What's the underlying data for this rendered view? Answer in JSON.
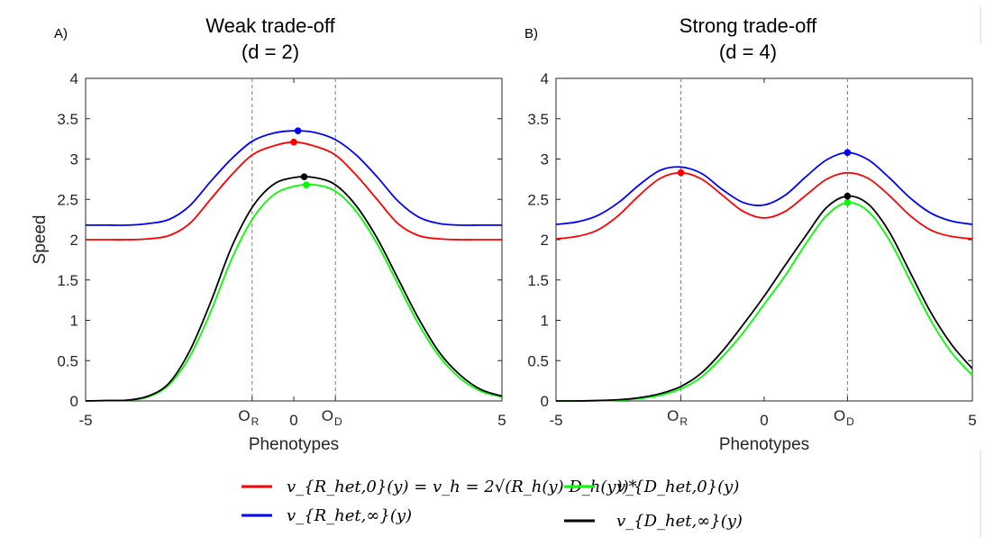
{
  "legend": [
    {
      "label": "v_{R_het,0}(y) = v_h = 2√(R_h(y) D_h(y))*",
      "color": "#ff0000"
    },
    {
      "label": "v_{R_het,∞}(y)",
      "color": "#0000ff"
    },
    {
      "label": "v_{D_het,0}(y)",
      "color": "#00ff00"
    },
    {
      "label": "v_{D_het,∞}(y)",
      "color": "#000000"
    }
  ],
  "chart_data": [
    {
      "type": "line",
      "panel_label": "A)",
      "title": "Weak trade-off",
      "subtitle": "(d = 2)",
      "xlabel": "Phenotypes",
      "ylabel": "Speed",
      "xlim": [
        -5,
        5
      ],
      "ylim": [
        0,
        4
      ],
      "xticks": [
        {
          "value": -5,
          "label": "-5"
        },
        {
          "value": 0,
          "label": "0"
        },
        {
          "value": 5,
          "label": "5"
        }
      ],
      "yticks": [
        0,
        0.5,
        1,
        1.5,
        2,
        2.5,
        3,
        3.5,
        4
      ],
      "optima": [
        {
          "value": -1,
          "label": "O",
          "sub": "R"
        },
        {
          "value": 1,
          "label": "O",
          "sub": "D"
        }
      ],
      "x": [
        -5,
        -4.5,
        -4,
        -3.5,
        -3,
        -2.5,
        -2,
        -1.5,
        -1,
        -0.5,
        0,
        0.5,
        1,
        1.5,
        2,
        2.5,
        3,
        3.5,
        4,
        4.5,
        5
      ],
      "series": [
        {
          "name": "v_{R_het,0}(y)",
          "color": "#ff0000",
          "values": [
            2.0,
            2.0,
            2.0,
            2.01,
            2.05,
            2.2,
            2.5,
            2.8,
            3.05,
            3.16,
            3.21,
            3.16,
            3.05,
            2.8,
            2.5,
            2.2,
            2.05,
            2.01,
            2.0,
            2.0,
            2.0
          ],
          "peak": {
            "x": 0,
            "y": 3.21
          }
        },
        {
          "name": "v_{R_het,∞}(y)",
          "color": "#0000ff",
          "values": [
            2.18,
            2.18,
            2.18,
            2.2,
            2.25,
            2.42,
            2.72,
            3.0,
            3.22,
            3.32,
            3.35,
            3.33,
            3.24,
            3.05,
            2.78,
            2.48,
            2.28,
            2.2,
            2.18,
            2.18,
            2.18
          ],
          "peak": {
            "x": 0.1,
            "y": 3.35
          }
        },
        {
          "name": "v_{D_het,0}(y)",
          "color": "#00ff00",
          "values": [
            0.0,
            0.005,
            0.01,
            0.05,
            0.2,
            0.55,
            1.1,
            1.75,
            2.25,
            2.55,
            2.66,
            2.68,
            2.6,
            2.35,
            1.95,
            1.45,
            0.95,
            0.55,
            0.28,
            0.12,
            0.05
          ],
          "peak": {
            "x": 0.3,
            "y": 2.68
          }
        },
        {
          "name": "v_{D_het,∞}(y)",
          "color": "#000000",
          "values": [
            0.0,
            0.005,
            0.01,
            0.06,
            0.22,
            0.62,
            1.22,
            1.9,
            2.4,
            2.68,
            2.77,
            2.77,
            2.68,
            2.42,
            2.02,
            1.52,
            1.02,
            0.6,
            0.32,
            0.14,
            0.06
          ],
          "peak": {
            "x": 0.25,
            "y": 2.78
          }
        }
      ]
    },
    {
      "type": "line",
      "panel_label": "B)",
      "title": "Strong trade-off",
      "subtitle": "(d = 4)",
      "xlabel": "Phenotypes",
      "ylabel": "",
      "xlim": [
        -5,
        5
      ],
      "ylim": [
        0,
        4
      ],
      "xticks": [
        {
          "value": -5,
          "label": "-5"
        },
        {
          "value": 0,
          "label": "0"
        },
        {
          "value": 5,
          "label": "5"
        }
      ],
      "yticks": [
        0,
        0.5,
        1,
        1.5,
        2,
        2.5,
        3,
        3.5,
        4
      ],
      "optima": [
        {
          "value": -2,
          "label": "O",
          "sub": "R"
        },
        {
          "value": 2,
          "label": "O",
          "sub": "D"
        }
      ],
      "x": [
        -5,
        -4.5,
        -4,
        -3.5,
        -3,
        -2.5,
        -2,
        -1.5,
        -1,
        -0.5,
        0,
        0.5,
        1,
        1.5,
        2,
        2.5,
        3,
        3.5,
        4,
        4.5,
        5
      ],
      "series": [
        {
          "name": "v_{R_het,0}(y)",
          "color": "#ff0000",
          "values": [
            2.01,
            2.04,
            2.12,
            2.3,
            2.55,
            2.76,
            2.83,
            2.75,
            2.55,
            2.35,
            2.27,
            2.35,
            2.55,
            2.75,
            2.83,
            2.76,
            2.55,
            2.3,
            2.12,
            2.04,
            2.01
          ],
          "peak": {
            "x": -2,
            "y": 2.83
          }
        },
        {
          "name": "v_{R_het,∞}(y)",
          "color": "#0000ff",
          "values": [
            2.19,
            2.22,
            2.3,
            2.46,
            2.68,
            2.86,
            2.9,
            2.82,
            2.62,
            2.46,
            2.43,
            2.55,
            2.78,
            2.99,
            3.08,
            2.99,
            2.77,
            2.52,
            2.33,
            2.23,
            2.19
          ],
          "peak": {
            "x": 2,
            "y": 3.08
          }
        },
        {
          "name": "v_{D_het,0}(y)",
          "color": "#00ff00",
          "values": [
            0.0,
            0.0,
            0.005,
            0.01,
            0.03,
            0.07,
            0.15,
            0.3,
            0.55,
            0.85,
            1.2,
            1.55,
            1.95,
            2.3,
            2.46,
            2.35,
            2.0,
            1.5,
            1.0,
            0.6,
            0.32
          ],
          "peak": {
            "x": 2,
            "y": 2.46
          }
        },
        {
          "name": "v_{D_het,∞}(y)",
          "color": "#000000",
          "values": [
            0.0,
            0.0,
            0.005,
            0.015,
            0.04,
            0.09,
            0.18,
            0.35,
            0.62,
            0.95,
            1.3,
            1.68,
            2.05,
            2.4,
            2.54,
            2.44,
            2.1,
            1.6,
            1.1,
            0.7,
            0.4
          ],
          "peak": {
            "x": 2,
            "y": 2.54
          }
        }
      ]
    }
  ]
}
